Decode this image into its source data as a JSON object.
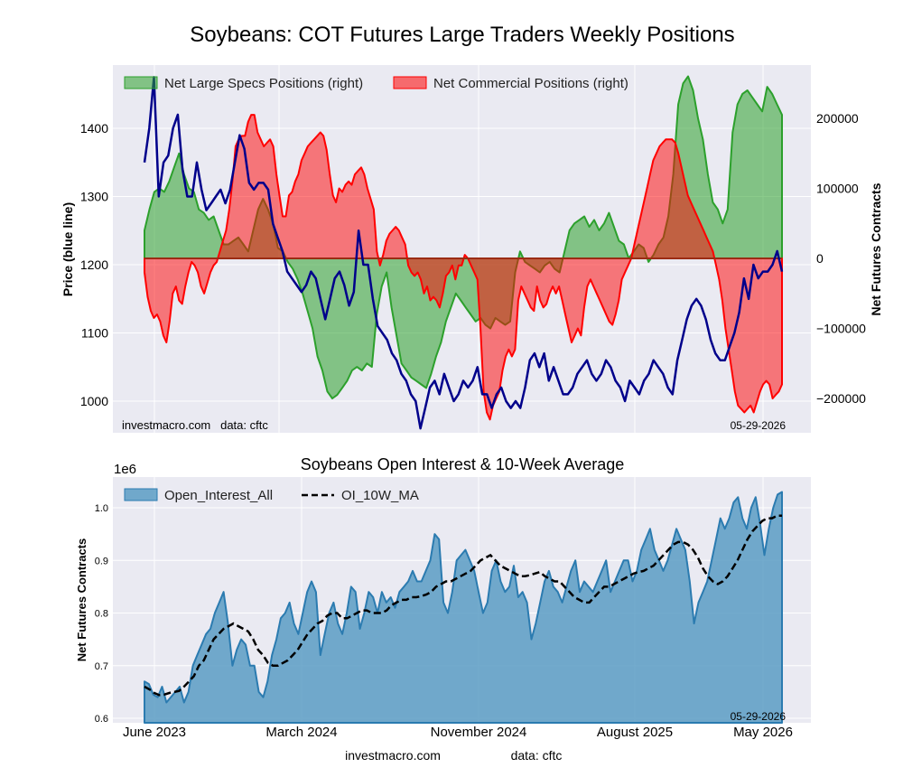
{
  "footer": {
    "site": "investmacro.com",
    "source": "data: cftc"
  },
  "chart_data": [
    {
      "type": "area",
      "title": "Soybeans: COT Futures Large Traders Weekly Positions",
      "ylabel": "Price (blue line)",
      "y2label": "Net Futures Contracts",
      "ylim": [
        955,
        1478
      ],
      "y2lim": [
        -230000,
        280000
      ],
      "yticks": [
        1000,
        1100,
        1200,
        1300,
        1400
      ],
      "y2ticks": [
        -200000,
        -100000,
        0,
        100000,
        200000
      ],
      "grid": true,
      "legend_position": "top-left",
      "watermark": "investmacro.com   data: cftc",
      "date_label": "05-29-2026",
      "colors": {
        "specs": "#2ca02c",
        "commercial": "#ff0000",
        "price": "#00008b"
      },
      "series": [
        {
          "name": "Net Large Specs Positions (right)",
          "axis": "right",
          "values": [
            40000,
            70000,
            95000,
            100000,
            95000,
            110000,
            130000,
            150000,
            120000,
            100000,
            95000,
            70000,
            65000,
            55000,
            60000,
            40000,
            20000,
            20000,
            25000,
            30000,
            20000,
            10000,
            40000,
            70000,
            85000,
            70000,
            50000,
            15000,
            10000,
            -5000,
            -15000,
            -30000,
            -50000,
            -75000,
            -100000,
            -140000,
            -160000,
            -190000,
            -200000,
            -195000,
            -185000,
            -175000,
            -160000,
            -155000,
            -160000,
            -150000,
            -155000,
            -80000,
            -40000,
            -20000,
            -70000,
            -110000,
            -150000,
            -160000,
            -170000,
            -175000,
            -180000,
            -185000,
            -165000,
            -140000,
            -120000,
            -90000,
            -70000,
            -50000,
            -60000,
            -70000,
            -80000,
            -90000,
            -85000,
            -95000,
            -100000,
            -85000,
            -90000,
            -95000,
            -90000,
            -20000,
            10000,
            -5000,
            -10000,
            -15000,
            -20000,
            -10000,
            -5000,
            -15000,
            -20000,
            10000,
            40000,
            50000,
            55000,
            60000,
            45000,
            55000,
            40000,
            50000,
            65000,
            45000,
            25000,
            20000,
            0,
            10000,
            20000,
            15000,
            -5000,
            5000,
            20000,
            30000,
            60000,
            120000,
            220000,
            250000,
            260000,
            240000,
            200000,
            170000,
            120000,
            80000,
            70000,
            50000,
            70000,
            180000,
            220000,
            235000,
            240000,
            230000,
            220000,
            210000,
            245000,
            235000,
            220000,
            205000
          ]
        },
        {
          "name": "Net Commercial Positions (right)",
          "axis": "right",
          "values": [
            -20000,
            -55000,
            -75000,
            -85000,
            -80000,
            -90000,
            -110000,
            -120000,
            -90000,
            -50000,
            -40000,
            -60000,
            -65000,
            -40000,
            -20000,
            -5000,
            -10000,
            -20000,
            -40000,
            -50000,
            -35000,
            -20000,
            -10000,
            -5000,
            10000,
            25000,
            40000,
            70000,
            110000,
            160000,
            170000,
            175000,
            175000,
            195000,
            205000,
            205000,
            180000,
            170000,
            160000,
            165000,
            170000,
            160000,
            120000,
            90000,
            60000,
            60000,
            90000,
            95000,
            110000,
            120000,
            140000,
            150000,
            160000,
            165000,
            170000,
            175000,
            180000,
            175000,
            155000,
            120000,
            90000,
            80000,
            100000,
            95000,
            105000,
            110000,
            105000,
            120000,
            125000,
            130000,
            120000,
            100000,
            85000,
            70000,
            10000,
            -10000,
            5000,
            25000,
            35000,
            40000,
            45000,
            40000,
            30000,
            20000,
            -10000,
            -20000,
            -25000,
            -20000,
            -30000,
            -50000,
            -40000,
            -60000,
            -55000,
            -60000,
            -70000,
            -50000,
            -25000,
            -20000,
            -10000,
            -30000,
            -10000,
            -10000,
            5000,
            0,
            -10000,
            -20000,
            -30000,
            -100000,
            -190000,
            -220000,
            -230000,
            -210000,
            -200000,
            -190000,
            -160000,
            -140000,
            -130000,
            -140000,
            -130000,
            -60000,
            -40000,
            -50000,
            -60000,
            -70000,
            -75000,
            -40000,
            -60000,
            -70000,
            -65000,
            -50000,
            -40000,
            -50000,
            -40000,
            -60000,
            -80000,
            -100000,
            -120000,
            -110000,
            -100000,
            -110000,
            -70000,
            -40000,
            -30000,
            -40000,
            -50000,
            -60000,
            -70000,
            -80000,
            -90000,
            -95000,
            -80000,
            -60000,
            -30000,
            -20000,
            -10000,
            0,
            20000,
            40000,
            60000,
            80000,
            100000,
            120000,
            140000,
            150000,
            160000,
            165000,
            170000,
            170000,
            170000,
            165000,
            150000,
            130000,
            110000,
            90000,
            80000,
            70000,
            60000,
            50000,
            40000,
            30000,
            20000,
            10000,
            -10000,
            -30000,
            -60000,
            -100000,
            -130000,
            -160000,
            -190000,
            -210000,
            -215000,
            -220000,
            -215000,
            -210000,
            -220000,
            -205000,
            -190000,
            -180000,
            -175000,
            -180000,
            -200000,
            -195000,
            -190000,
            -180000
          ]
        },
        {
          "name": "Price",
          "axis": "left",
          "values": [
            1350,
            1400,
            1475,
            1300,
            1350,
            1360,
            1400,
            1420,
            1340,
            1300,
            1300,
            1350,
            1310,
            1280,
            1290,
            1300,
            1310,
            1290,
            1310,
            1350,
            1390,
            1370,
            1320,
            1310,
            1320,
            1320,
            1310,
            1260,
            1240,
            1220,
            1190,
            1180,
            1170,
            1160,
            1170,
            1190,
            1180,
            1150,
            1120,
            1150,
            1180,
            1190,
            1170,
            1140,
            1160,
            1250,
            1200,
            1200,
            1150,
            1110,
            1100,
            1090,
            1070,
            1060,
            1040,
            1030,
            1010,
            1000,
            960,
            990,
            1020,
            1030,
            1010,
            1040,
            1020,
            1000,
            1010,
            1030,
            1020,
            1030,
            1050,
            1010,
            1010,
            990,
            1010,
            1020,
            1000,
            990,
            1000,
            990,
            1020,
            1060,
            1070,
            1050,
            1070,
            1030,
            1050,
            1030,
            1010,
            1010,
            1020,
            1040,
            1050,
            1060,
            1040,
            1030,
            1040,
            1060,
            1050,
            1030,
            1020,
            1000,
            1030,
            1020,
            1010,
            1030,
            1040,
            1060,
            1050,
            1040,
            1020,
            1010,
            1060,
            1090,
            1120,
            1140,
            1150,
            1140,
            1120,
            1090,
            1070,
            1060,
            1060,
            1080,
            1100,
            1130,
            1180,
            1150,
            1200,
            1180,
            1190,
            1190,
            1200,
            1220,
            1190
          ]
        }
      ]
    },
    {
      "type": "area",
      "title": "Soybeans Open Interest & 10-Week Average",
      "ylabel": "Net Futures Contracts",
      "xlabel": "",
      "scale_label": "1e6",
      "ylim": [
        0.59,
        1.06
      ],
      "yticks": [
        "0.6",
        "0.7",
        "0.8",
        "0.9",
        "1.0"
      ],
      "x_tick_labels": [
        "June 2023",
        "March 2024",
        "November 2024",
        "August 2025",
        "May 2026"
      ],
      "grid": true,
      "legend_position": "top-left",
      "date_label": "05-29-2026",
      "colors": {
        "oi_fill": "#5b9cc4",
        "oi_line": "#2b7bb0",
        "ma": "#000000"
      },
      "series": [
        {
          "name": "Open_Interest_All",
          "values": [
            0.67,
            0.665,
            0.645,
            0.64,
            0.66,
            0.63,
            0.64,
            0.65,
            0.66,
            0.63,
            0.65,
            0.7,
            0.72,
            0.74,
            0.76,
            0.77,
            0.8,
            0.82,
            0.84,
            0.78,
            0.7,
            0.73,
            0.75,
            0.74,
            0.7,
            0.7,
            0.65,
            0.64,
            0.67,
            0.72,
            0.75,
            0.79,
            0.8,
            0.82,
            0.78,
            0.76,
            0.8,
            0.84,
            0.86,
            0.84,
            0.72,
            0.76,
            0.8,
            0.82,
            0.78,
            0.76,
            0.8,
            0.85,
            0.84,
            0.77,
            0.8,
            0.84,
            0.83,
            0.8,
            0.84,
            0.82,
            0.83,
            0.81,
            0.84,
            0.85,
            0.86,
            0.88,
            0.86,
            0.86,
            0.88,
            0.9,
            0.95,
            0.94,
            0.82,
            0.8,
            0.84,
            0.9,
            0.91,
            0.92,
            0.9,
            0.88,
            0.84,
            0.8,
            0.82,
            0.88,
            0.9,
            0.86,
            0.84,
            0.85,
            0.89,
            0.83,
            0.84,
            0.82,
            0.75,
            0.78,
            0.82,
            0.86,
            0.88,
            0.85,
            0.84,
            0.82,
            0.85,
            0.88,
            0.9,
            0.84,
            0.86,
            0.85,
            0.84,
            0.86,
            0.88,
            0.9,
            0.84,
            0.86,
            0.88,
            0.9,
            0.9,
            0.86,
            0.88,
            0.92,
            0.94,
            0.96,
            0.92,
            0.9,
            0.88,
            0.9,
            0.93,
            0.96,
            0.94,
            0.92,
            0.86,
            0.78,
            0.82,
            0.84,
            0.86,
            0.9,
            0.94,
            0.98,
            0.96,
            0.98,
            1.01,
            1.02,
            0.98,
            0.96,
            1.0,
            1.02,
            0.97,
            0.91,
            0.96,
            1.0,
            1.025,
            1.03
          ]
        },
        {
          "name": "OI_10W_MA",
          "values": [
            0.66,
            0.655,
            0.648,
            0.644,
            0.645,
            0.648,
            0.65,
            0.652,
            0.66,
            0.67,
            0.68,
            0.7,
            0.71,
            0.73,
            0.75,
            0.76,
            0.77,
            0.775,
            0.78,
            0.775,
            0.77,
            0.765,
            0.75,
            0.73,
            0.72,
            0.705,
            0.7,
            0.7,
            0.705,
            0.71,
            0.72,
            0.73,
            0.745,
            0.76,
            0.77,
            0.78,
            0.785,
            0.795,
            0.8,
            0.8,
            0.79,
            0.79,
            0.795,
            0.8,
            0.805,
            0.805,
            0.8,
            0.8,
            0.8,
            0.805,
            0.815,
            0.82,
            0.825,
            0.825,
            0.83,
            0.83,
            0.832,
            0.835,
            0.84,
            0.85,
            0.855,
            0.86,
            0.86,
            0.865,
            0.87,
            0.875,
            0.88,
            0.89,
            0.9,
            0.905,
            0.91,
            0.9,
            0.89,
            0.885,
            0.88,
            0.875,
            0.87,
            0.87,
            0.872,
            0.875,
            0.878,
            0.87,
            0.865,
            0.86,
            0.86,
            0.85,
            0.84,
            0.83,
            0.825,
            0.82,
            0.82,
            0.83,
            0.84,
            0.85,
            0.85,
            0.855,
            0.86,
            0.865,
            0.87,
            0.875,
            0.878,
            0.88,
            0.885,
            0.89,
            0.9,
            0.91,
            0.92,
            0.93,
            0.935,
            0.935,
            0.93,
            0.92,
            0.905,
            0.885,
            0.87,
            0.86,
            0.855,
            0.86,
            0.87,
            0.885,
            0.9,
            0.92,
            0.94,
            0.955,
            0.965,
            0.975,
            0.98,
            0.98,
            0.985,
            0.985
          ]
        }
      ]
    }
  ]
}
